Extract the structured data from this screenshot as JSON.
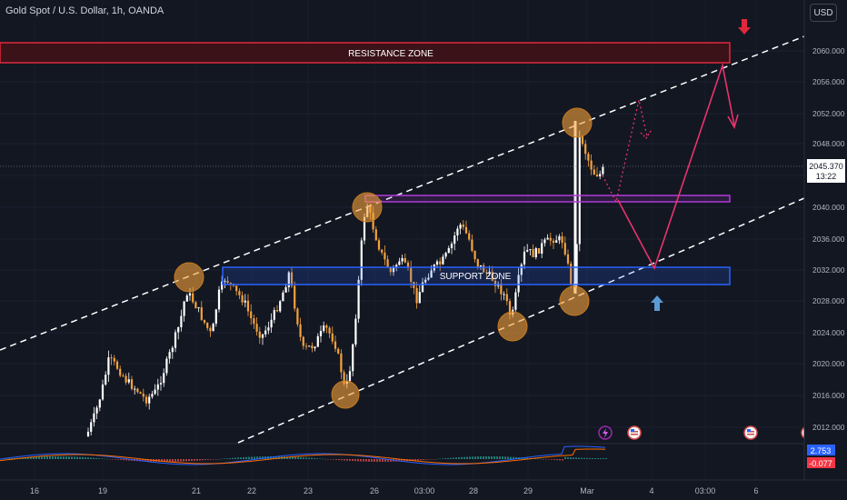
{
  "header": {
    "symbol_title": "Gold Spot / U.S. Dollar, 1h, OANDA",
    "currency_button": "USD"
  },
  "price_axis": {
    "labels": [
      "2060.000",
      "2056.000",
      "2052.000",
      "2048.000",
      "2044.000",
      "2040.000",
      "2036.000",
      "2032.000",
      "2028.000",
      "2024.000",
      "2020.000",
      "2016.000",
      "2012.000"
    ],
    "current_price": "2045.370",
    "countdown": "13:22"
  },
  "time_axis": {
    "labels": [
      "16",
      "19",
      "21",
      "22",
      "23",
      "26",
      "03:00",
      "28",
      "29",
      "Mar",
      "4",
      "03:00",
      "6"
    ]
  },
  "zones": {
    "resistance_label": "RESISTANCE ZONE",
    "support_label": "SUPPORT ZONE"
  },
  "indicator": {
    "macd_value": "2.753",
    "signal_value": "-0.077"
  },
  "colors": {
    "background": "#131722",
    "candle_up": "#ffffff",
    "candle_down": "#f5a23c",
    "resistance": "#e0283c",
    "support": "#2962ff",
    "purple": "#b03ad8",
    "projection": "#e8336e",
    "highlight_circle": "#f5a23c",
    "macd_badge": "#2962ff",
    "signal_badge": "#f23645"
  },
  "icons": [
    "arrow-down-icon",
    "arrow-up-icon",
    "lightning-event-icon",
    "us-flag-event-icon"
  ]
}
